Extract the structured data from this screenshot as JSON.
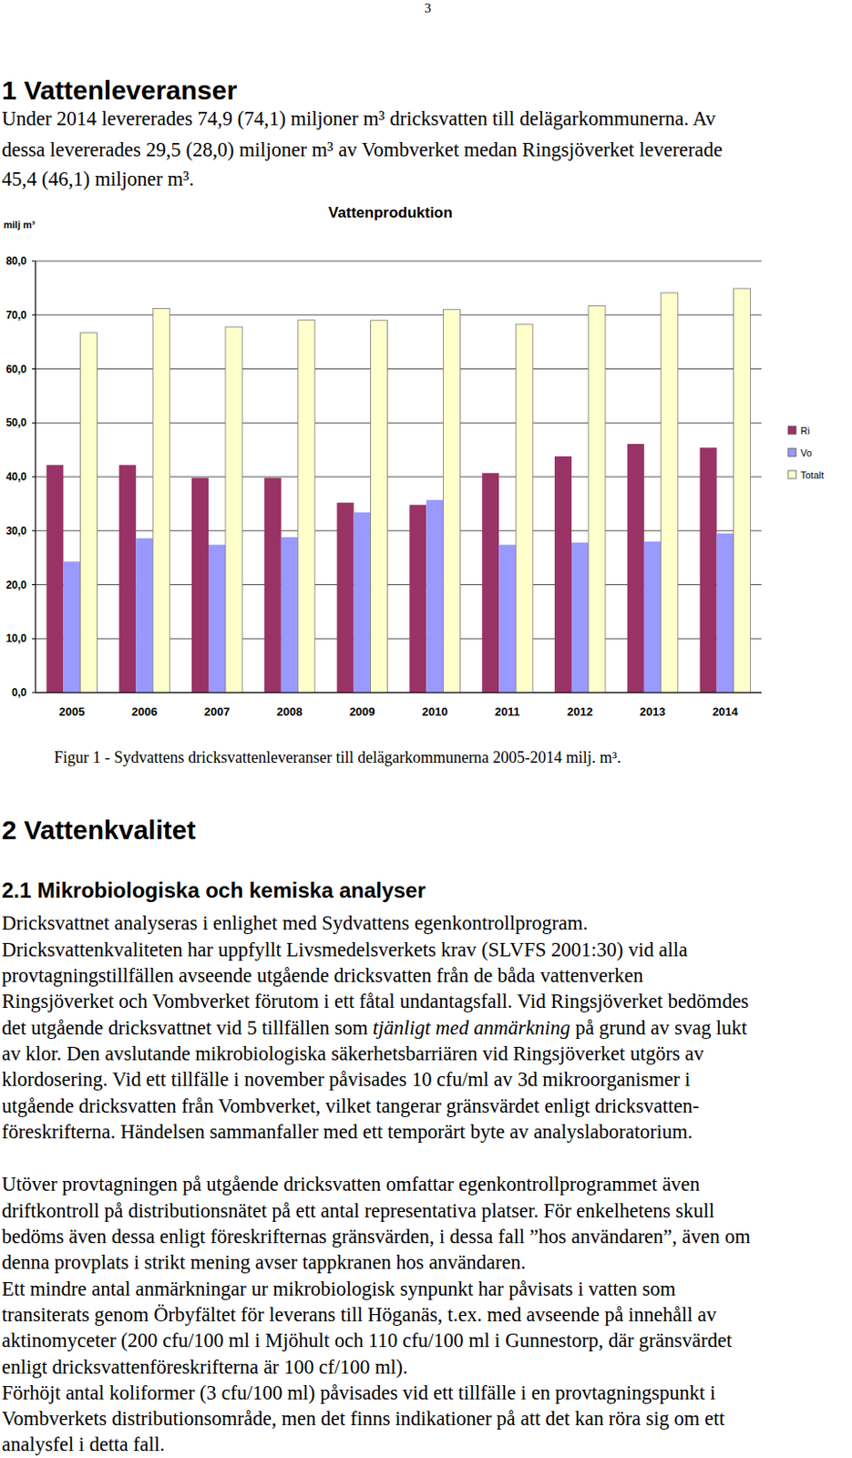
{
  "page_number": "3",
  "section1": {
    "heading": "1 Vattenleveranser",
    "lines": [
      "Under 2014 levererades 74,9 (74,1) miljoner m³ dricksvatten till delägarkommunerna. Av",
      "dessa levererades 29,5 (28,0) miljoner m³ av Vombverket medan Ringsjöverket levererade",
      "45,4 (46,1) miljoner m³."
    ]
  },
  "chart_data": {
    "type": "bar",
    "title": "Vattenproduktion",
    "y_label": "milj m³",
    "categories": [
      "2005",
      "2006",
      "2007",
      "2008",
      "2009",
      "2010",
      "2011",
      "2012",
      "2013",
      "2014"
    ],
    "series": [
      {
        "name": "Ri",
        "color": "#993366",
        "values": [
          42.2,
          42.2,
          39.8,
          39.8,
          35.2,
          34.8,
          40.7,
          43.8,
          46.1,
          45.4
        ]
      },
      {
        "name": "Vo",
        "color": "#9999ff",
        "values": [
          24.3,
          28.6,
          27.4,
          28.8,
          33.4,
          35.7,
          27.4,
          27.8,
          28.0,
          29.5
        ]
      },
      {
        "name": "Totalt",
        "color": "#ffffcc",
        "values": [
          66.7,
          71.2,
          67.8,
          69.1,
          69.0,
          71.0,
          68.3,
          71.7,
          74.1,
          74.9
        ]
      }
    ],
    "ylim": [
      0,
      80
    ],
    "yticks": [
      {
        "value": 0,
        "label": "0,0"
      },
      {
        "value": 10,
        "label": "10,0"
      },
      {
        "value": 20,
        "label": "20,0"
      },
      {
        "value": 30,
        "label": "30,0"
      },
      {
        "value": 40,
        "label": "40,0"
      },
      {
        "value": 50,
        "label": "50,0"
      },
      {
        "value": 60,
        "label": "60,0"
      },
      {
        "value": 70,
        "label": "70,0"
      },
      {
        "value": 80,
        "label": "80,0"
      }
    ],
    "grid": true,
    "legend": "right"
  },
  "figure_caption": "Figur 1 - Sydvattens dricksvattenleveranser till delägarkommunerna 2005-2014 milj. m³.",
  "section2": {
    "heading": "2 Vattenkvalitet",
    "subheading": "2.1 Mikrobiologiska och kemiska analyser",
    "paragraphs": [
      {
        "lines": [
          "Dricksvattnet analyseras i enlighet med Sydvattens egenkontrollprogram.",
          "Dricksvattenkvaliteten har uppfyllt Livsmedelsverkets krav (SLVFS 2001:30) vid alla",
          "provtagningstillfällen avseende utgående dricksvatten från de båda vattenverken",
          "Ringsjöverket och Vombverket förutom i ett fåtal undantagsfall. Vid Ringsjöverket bedömdes",
          [
            "det utgående dricksvattnet vid 5 tillfällen som ",
            {
              "text": "tjänligt med anmärkning",
              "emphasis": true
            },
            " på grund av svag lukt"
          ],
          "av klor. Den avslutande mikrobiologiska säkerhetsbarriären vid Ringsjöverket utgörs av",
          "klordosering. Vid ett tillfälle i november påvisades 10 cfu/ml av 3d mikroorganismer i",
          "utgående dricksvatten från Vombverket, vilket tangerar gränsvärdet enligt dricksvatten-",
          "föreskrifterna. Händelsen sammanfaller med ett temporärt byte av analyslaboratorium."
        ]
      },
      {
        "lines": [
          "Utöver provtagningen på utgående dricksvatten omfattar egenkontrollprogrammet även",
          "driftkontroll på distributionsnätet på ett antal representativa platser. För enkelhetens skull",
          "bedöms även dessa enligt föreskrifternas gränsvärden, i dessa fall ”hos användaren”, även om",
          "denna provplats i strikt mening avser tappkranen hos användaren.",
          "Ett mindre antal anmärkningar ur mikrobiologisk synpunkt har påvisats i vatten som",
          "transiterats genom Örbyfältet för leverans till Höganäs, t.ex. med avseende på innehåll av",
          "aktinomyceter (200 cfu/100 ml i Mjöhult och 110 cfu/100 ml i Gunnestorp, där gränsvärdet",
          "enligt dricksvattenföreskrifterna är 100 cf/100 ml).",
          "Förhöjt antal koliformer (3 cfu/100 ml) påvisades vid ett tillfälle i en provtagningspunkt i",
          "Vombverkets distributionsområde, men det finns indikationer på att det kan röra sig om ett",
          "analysfel i detta fall."
        ]
      }
    ]
  }
}
